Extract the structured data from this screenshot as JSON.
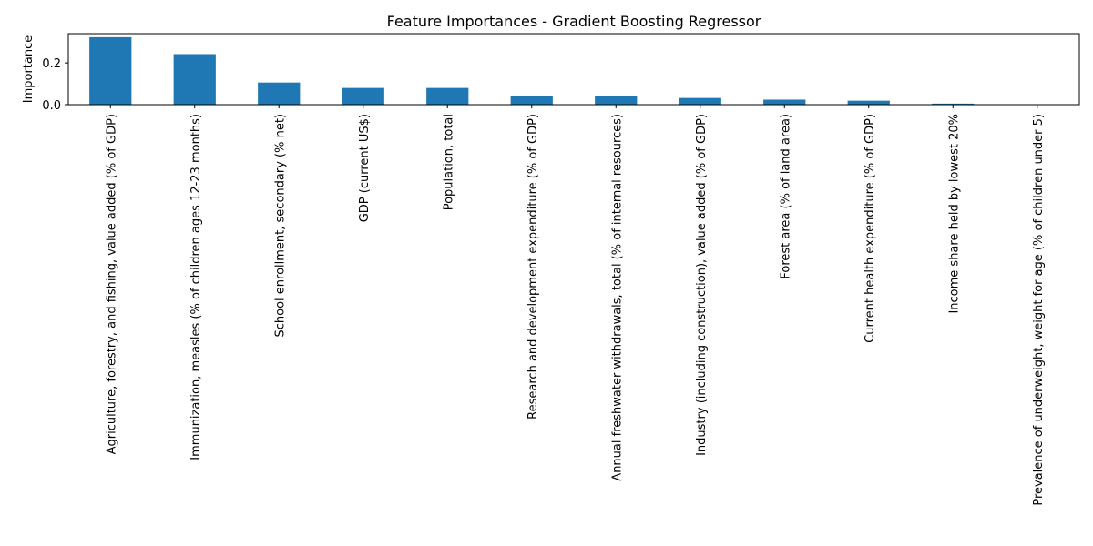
{
  "chart_data": {
    "type": "bar",
    "title": "Feature Importances - Gradient Boosting Regressor",
    "xlabel": "",
    "ylabel": "Importance",
    "categories": [
      "Agriculture, forestry, and fishing, value added (% of GDP)",
      "Immunization, measles (% of children ages 12-23 months)",
      "School enrollment, secondary (% net)",
      "GDP (current US$)",
      "Population, total",
      "Research and development expenditure (% of GDP)",
      "Annual freshwater withdrawals, total (% of internal resources)",
      "Industry (including construction), value added (% of GDP)",
      "Forest area (% of land area)",
      "Current health expenditure (% of GDP)",
      "Income share held by lowest 20%",
      "Prevalence of underweight, weight for age (% of children under 5)"
    ],
    "values": [
      0.323,
      0.242,
      0.106,
      0.08,
      0.08,
      0.042,
      0.041,
      0.032,
      0.024,
      0.019,
      0.005,
      0.001
    ],
    "ylim": [
      0,
      0.34
    ],
    "yticks": [
      0.0,
      0.2
    ],
    "ytick_labels": [
      "0.0",
      "0.2"
    ],
    "grid": false,
    "bar_color": "#1f77b4"
  }
}
